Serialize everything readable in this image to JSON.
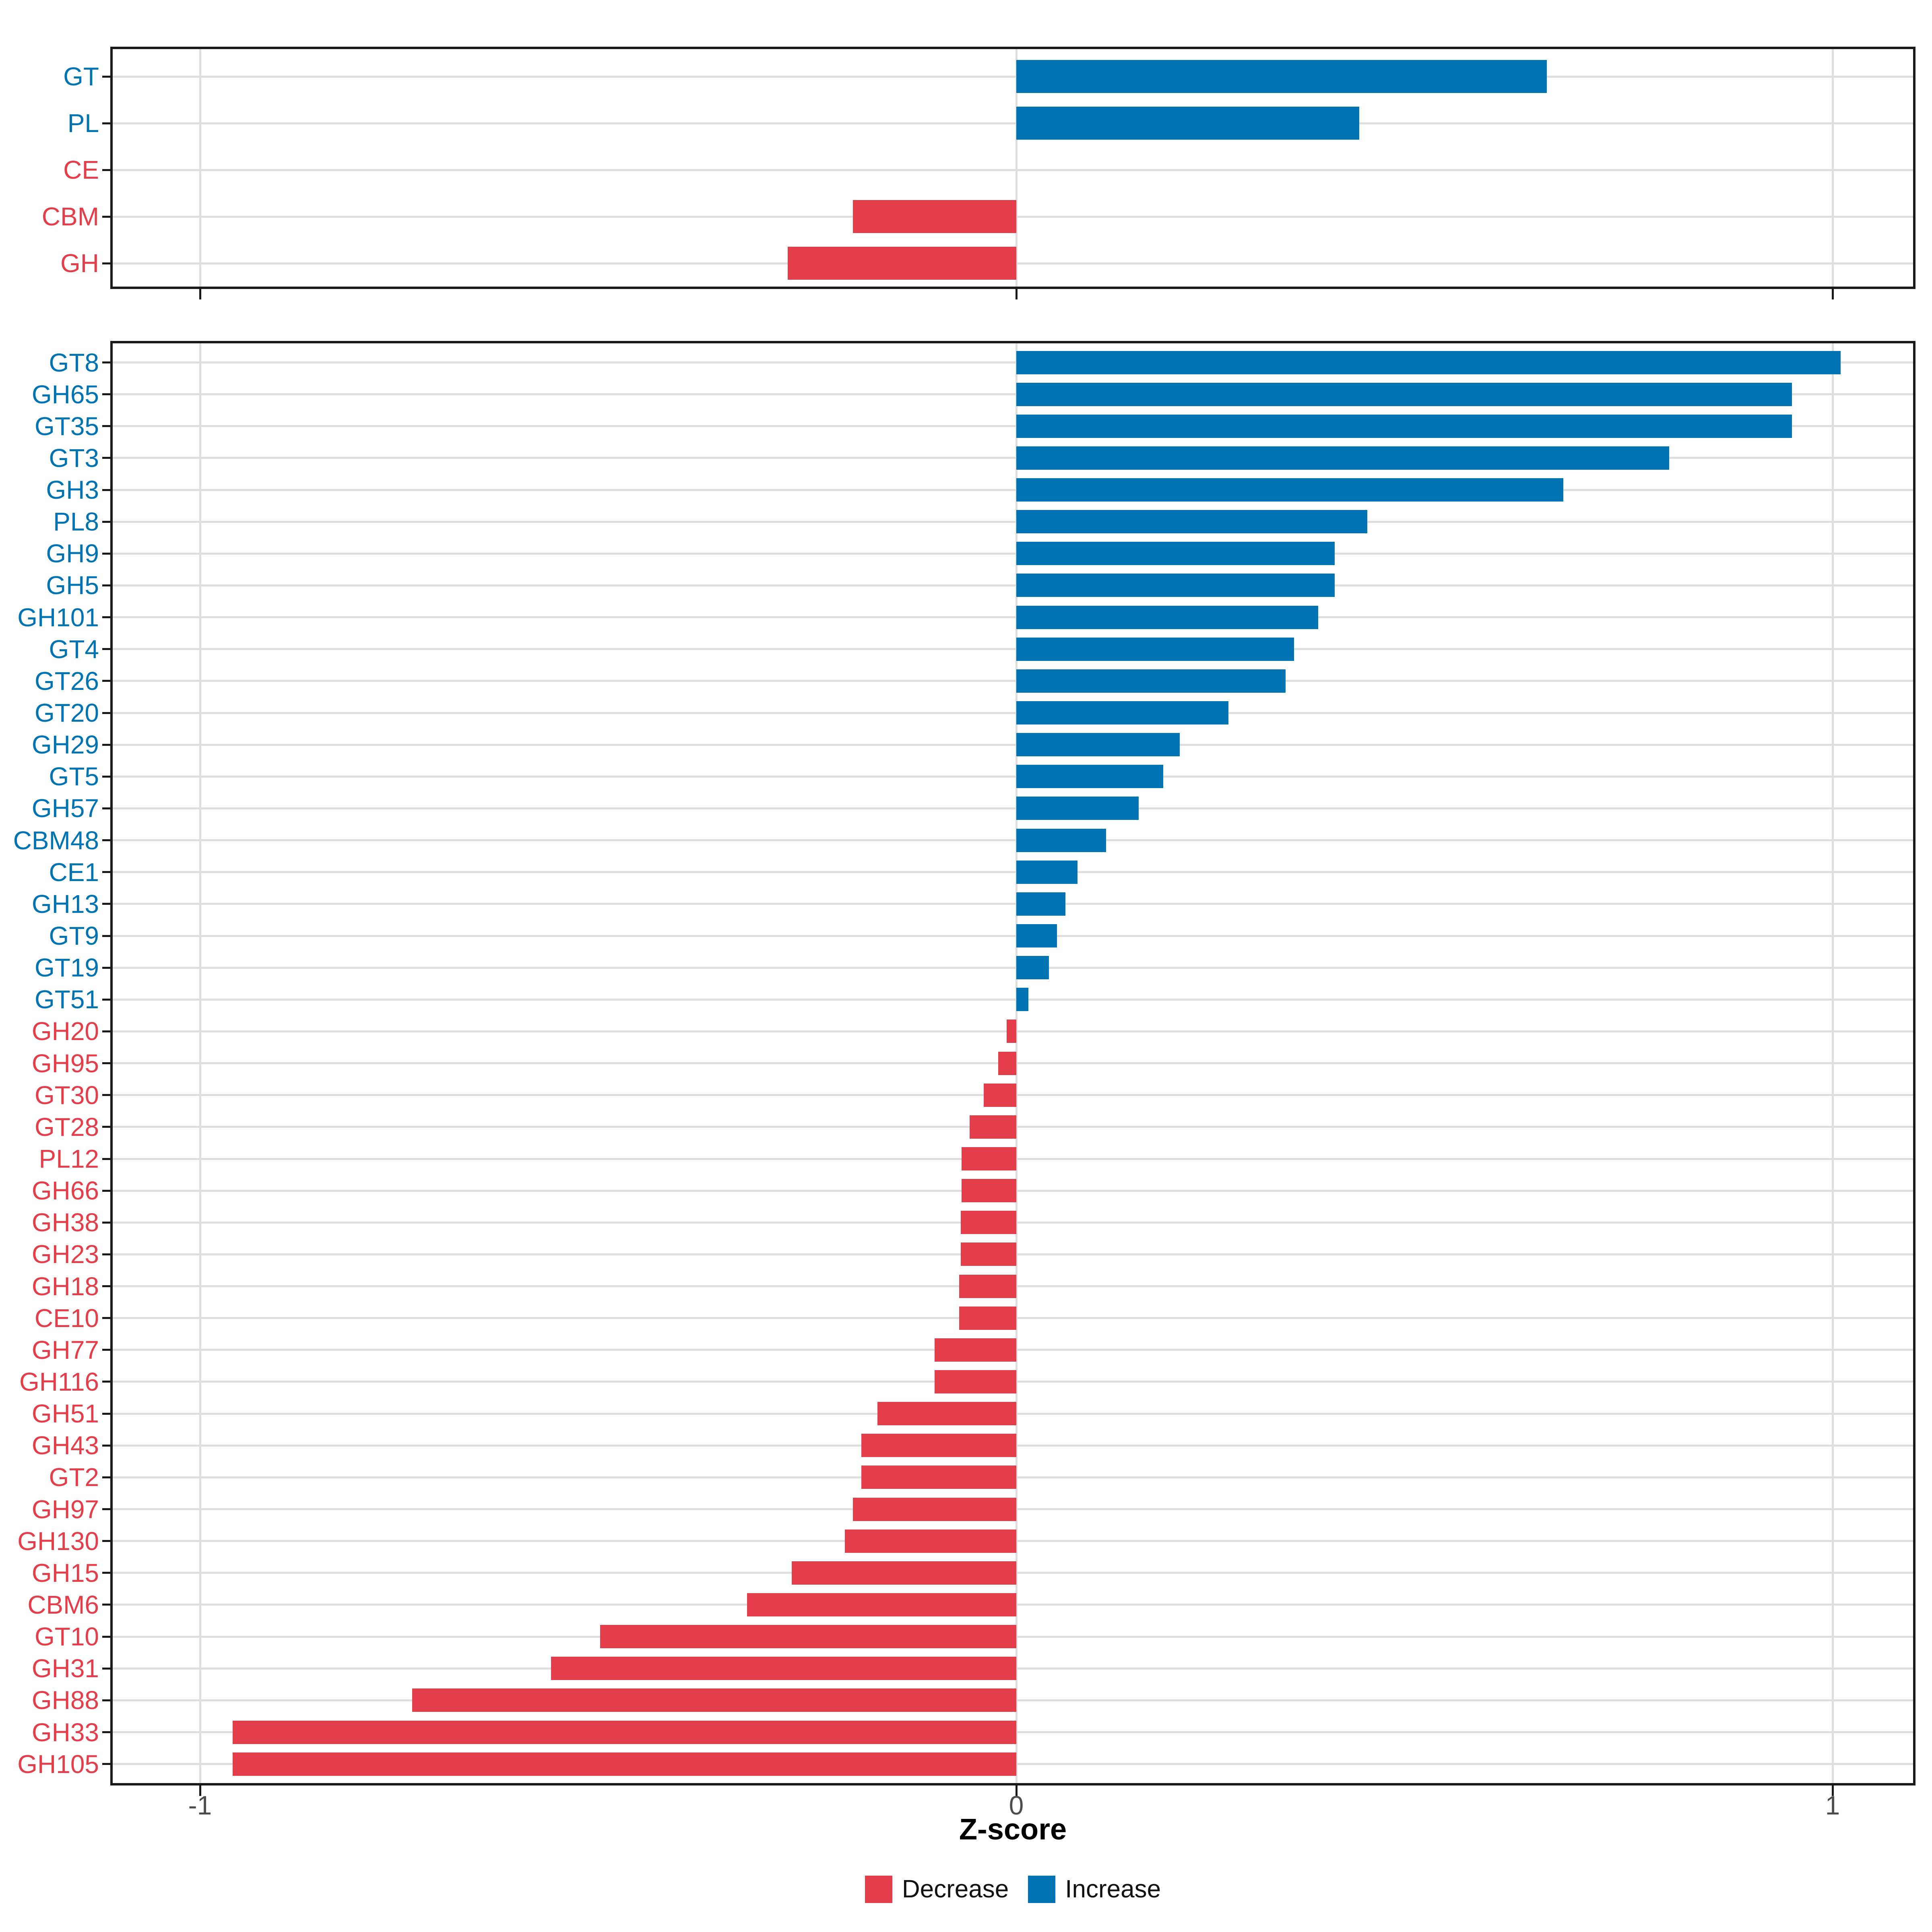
{
  "figure": {
    "xlabel": "Z-score",
    "x_tick_labels": [
      "-1",
      "0",
      "1"
    ],
    "x_tick_values": [
      -1,
      0,
      1
    ],
    "legend": [
      {
        "key": "decrease",
        "label": "Decrease"
      },
      {
        "key": "increase",
        "label": "Increase"
      }
    ],
    "colors": {
      "increase": "#0073B2",
      "decrease": "#E43E4B",
      "grid": "#DEDEDE",
      "panel_border": "#1A1A1A",
      "axis_tick_text": "#4D4D4D",
      "title_text": "#000000",
      "legend_text": "#111111",
      "background": "#FFFFFF"
    }
  },
  "chart_data": [
    {
      "id": "cazyme-classes",
      "type": "bar",
      "orientation": "horizontal",
      "xlim": [
        -1.11,
        1.1
      ],
      "x_ticks": [
        -1,
        0,
        1
      ],
      "grid": true,
      "categories": [
        "GT",
        "PL",
        "CE",
        "CBM",
        "GH"
      ],
      "values": [
        0.65,
        0.42,
        0,
        -0.2,
        -0.28
      ],
      "directions": [
        "increase",
        "increase",
        "decrease",
        "decrease",
        "decrease"
      ]
    },
    {
      "id": "cazyme-families",
      "type": "bar",
      "orientation": "horizontal",
      "xlim": [
        -1.11,
        1.1
      ],
      "x_ticks": [
        -1,
        0,
        1
      ],
      "grid": true,
      "categories": [
        "GT8",
        "GH65",
        "GT35",
        "GT3",
        "GH3",
        "PL8",
        "GH9",
        "GH5",
        "GH101",
        "GT4",
        "GT26",
        "GT20",
        "GH29",
        "GT5",
        "GH57",
        "CBM48",
        "CE1",
        "GH13",
        "GT9",
        "GT19",
        "GT51",
        "GH20",
        "GH95",
        "GT30",
        "GT28",
        "PL12",
        "GH66",
        "GH38",
        "GH23",
        "GH18",
        "CE10",
        "GH77",
        "GH116",
        "GH51",
        "GH43",
        "GT2",
        "GH97",
        "GH130",
        "GH15",
        "CBM6",
        "GT10",
        "GH31",
        "GH88",
        "GH33",
        "GH105"
      ],
      "values": [
        1.01,
        0.95,
        0.95,
        0.8,
        0.67,
        0.43,
        0.39,
        0.39,
        0.37,
        0.34,
        0.33,
        0.26,
        0.2,
        0.18,
        0.15,
        0.11,
        0.075,
        0.06,
        0.05,
        0.04,
        0.015,
        -0.012,
        -0.022,
        -0.04,
        -0.057,
        -0.067,
        -0.067,
        -0.068,
        -0.068,
        -0.07,
        -0.07,
        -0.1,
        -0.1,
        -0.17,
        -0.19,
        -0.19,
        -0.2,
        -0.21,
        -0.275,
        -0.33,
        -0.51,
        -0.57,
        -0.74,
        -0.96,
        -0.96
      ],
      "directions": [
        "increase",
        "increase",
        "increase",
        "increase",
        "increase",
        "increase",
        "increase",
        "increase",
        "increase",
        "increase",
        "increase",
        "increase",
        "increase",
        "increase",
        "increase",
        "increase",
        "increase",
        "increase",
        "increase",
        "increase",
        "increase",
        "decrease",
        "decrease",
        "decrease",
        "decrease",
        "decrease",
        "decrease",
        "decrease",
        "decrease",
        "decrease",
        "decrease",
        "decrease",
        "decrease",
        "decrease",
        "decrease",
        "decrease",
        "decrease",
        "decrease",
        "decrease",
        "decrease",
        "decrease",
        "decrease",
        "decrease",
        "decrease",
        "decrease"
      ]
    }
  ]
}
